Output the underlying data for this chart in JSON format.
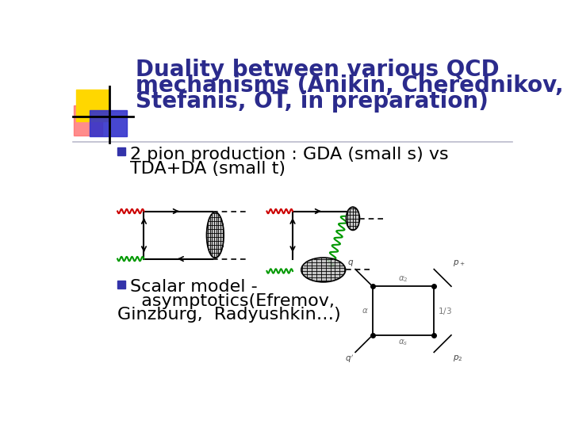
{
  "title_line1": "Duality between various QCD",
  "title_line2": "mechanisms (Anikin, Cherednikov,",
  "title_line3": "Stefanis, OT, in preparation)",
  "title_color": "#2B2B8C",
  "bullet_color": "#3333AA",
  "bullet1_line1": "2 pion production : GDA (small s) vs",
  "bullet1_line2": "TDA+DA (small t)",
  "bullet2_line1": "Scalar model -",
  "bullet2_line2": "  asymptotics(Efremov,",
  "bullet2_line3": "Ginzburg,  Radyushkin…)",
  "bg_color": "#FFFFFF",
  "logo_yellow": "#FFD700",
  "logo_red": "#FF6666",
  "logo_blue": "#3333CC",
  "red_wavy_color": "#CC0000",
  "green_wavy_color": "#009900",
  "gluon_color": "#009900",
  "text_fontsize": 16,
  "title_fontsize": 20
}
